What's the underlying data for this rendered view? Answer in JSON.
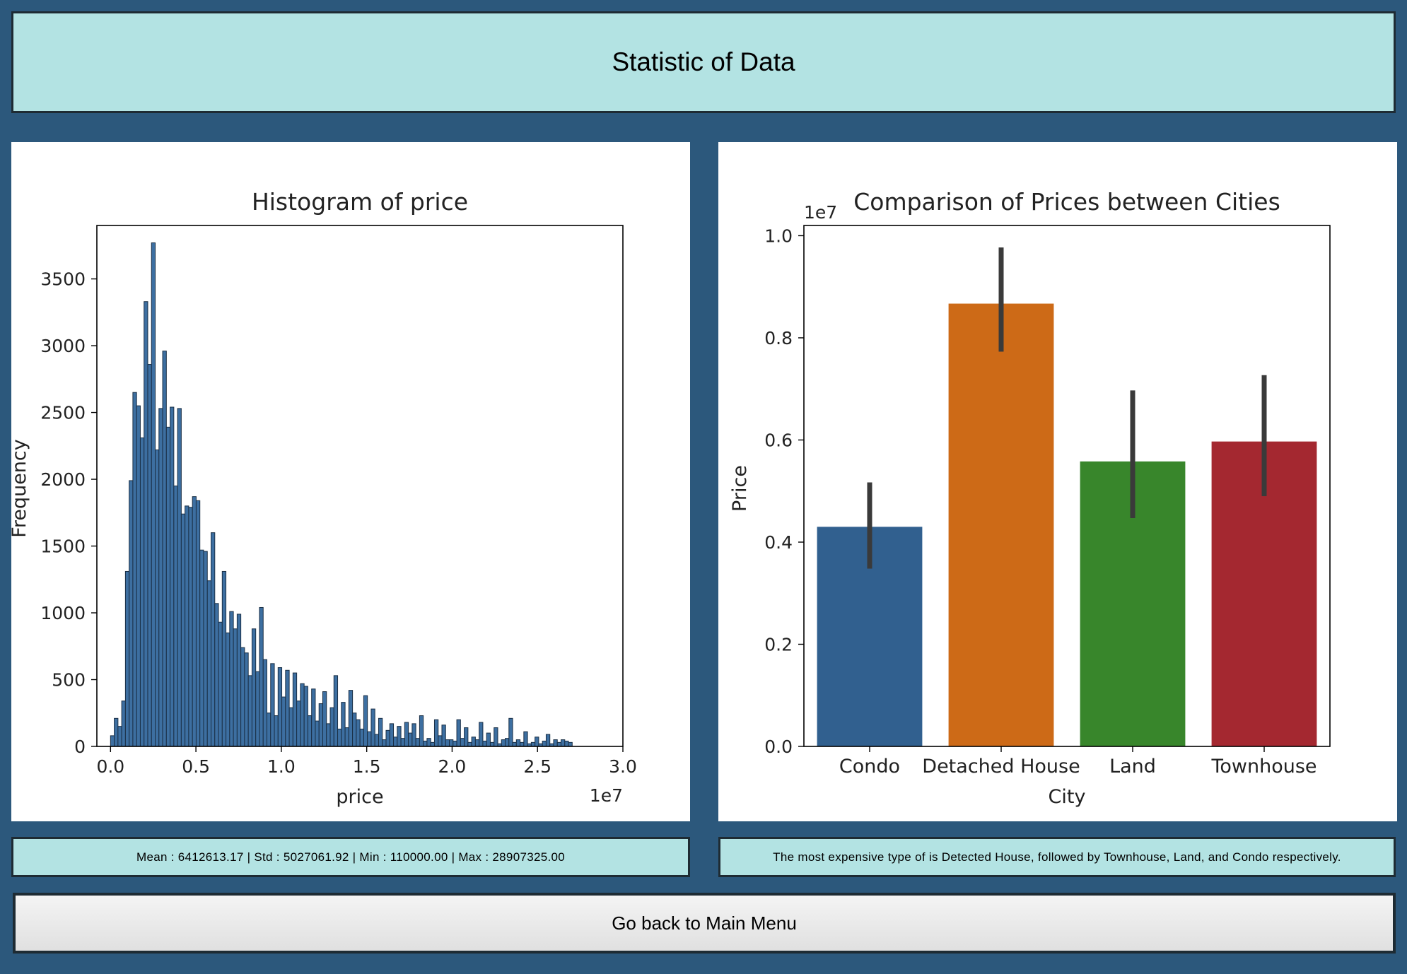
{
  "header": {
    "title": "Statistic of Data"
  },
  "stats": {
    "summary": "Mean : 6412613.17 | Std : 5027061.92 | Min : 110000.00 | Max : 28907325.00",
    "insight": "The most expensive type of is Detected House, followed by Townhouse, Land, and Condo respectively."
  },
  "footer": {
    "back_label": "Go back to Main Menu"
  },
  "chart_data": [
    {
      "type": "bar",
      "subtype": "histogram",
      "title": "Histogram of price",
      "xlabel": "price",
      "ylabel": "Frequency",
      "x_offset_label": "1e7",
      "xlim": [
        -0.08,
        3.0
      ],
      "ylim": [
        0,
        3900
      ],
      "xticks": [
        "0.0",
        "0.5",
        "1.0",
        "1.5",
        "2.0",
        "2.5",
        "3.0"
      ],
      "yticks": [
        "0",
        "500",
        "1000",
        "1500",
        "2000",
        "2500",
        "3000",
        "3500"
      ],
      "bin_start": 0.0,
      "bin_width": 0.0218,
      "bar_color": "#3d6fa1",
      "edge_color": "#1a2f45",
      "values": [
        80,
        210,
        150,
        340,
        1310,
        1990,
        2650,
        2550,
        2310,
        3330,
        2860,
        3770,
        2220,
        2530,
        2960,
        2390,
        2540,
        1950,
        2530,
        1740,
        1800,
        1790,
        1870,
        1840,
        1470,
        1460,
        1240,
        1600,
        1070,
        930,
        1310,
        850,
        1010,
        880,
        990,
        740,
        700,
        530,
        880,
        560,
        1040,
        650,
        250,
        620,
        230,
        590,
        370,
        570,
        290,
        550,
        340,
        470,
        450,
        230,
        430,
        190,
        320,
        410,
        170,
        290,
        530,
        130,
        330,
        140,
        420,
        250,
        200,
        130,
        380,
        110,
        280,
        90,
        210,
        50,
        120,
        170,
        70,
        150,
        60,
        180,
        100,
        170,
        60,
        230,
        40,
        60,
        30,
        200,
        80,
        160,
        50,
        50,
        40,
        200,
        60,
        140,
        30,
        70,
        50,
        180,
        40,
        100,
        30,
        140,
        20,
        50,
        60,
        210,
        30,
        50,
        30,
        110,
        20,
        30,
        70,
        20,
        40,
        90,
        20,
        50,
        30,
        50,
        40,
        30
      ]
    },
    {
      "type": "bar",
      "title": "Comparison of Prices between Cities",
      "xlabel": "City",
      "ylabel": "Price",
      "y_offset_label": "1e7",
      "ylim": [
        0,
        1.02
      ],
      "yticks": [
        "0.0",
        "0.2",
        "0.4",
        "0.6",
        "0.8",
        "1.0"
      ],
      "categories": [
        "Condo",
        "Detached House",
        "Land",
        "Townhouse"
      ],
      "values": [
        0.43,
        0.867,
        0.558,
        0.597
      ],
      "error_low": [
        0.348,
        0.773,
        0.447,
        0.49
      ],
      "error_high": [
        0.517,
        0.977,
        0.697,
        0.727
      ],
      "colors": [
        "#31608f",
        "#cd6a17",
        "#38862b",
        "#a42830"
      ]
    }
  ]
}
